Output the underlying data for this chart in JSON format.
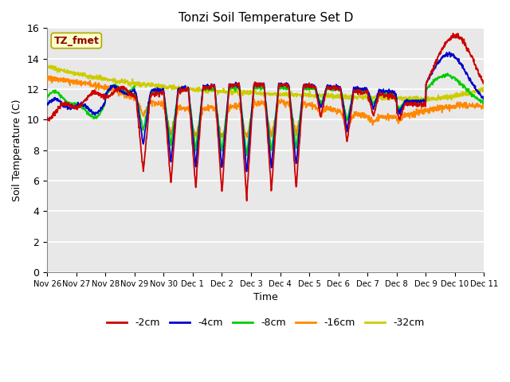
{
  "title": "Tonzi Soil Temperature Set D",
  "xlabel": "Time",
  "ylabel": "Soil Temperature (C)",
  "ylim": [
    0,
    16
  ],
  "yticks": [
    0,
    2,
    4,
    6,
    8,
    10,
    12,
    14,
    16
  ],
  "annotation_text": "TZ_fmet",
  "annotation_color": "#8B0000",
  "annotation_bg": "#FFFFCC",
  "annotation_edge": "#AAAA00",
  "series_colors": [
    "#CC0000",
    "#0000CC",
    "#00CC00",
    "#FF8800",
    "#CCCC00"
  ],
  "series_labels": [
    "-2cm",
    "-4cm",
    "-8cm",
    "-16cm",
    "-32cm"
  ],
  "bg_color": "#E8E8E8",
  "day_labels": [
    "Nov 26",
    "Nov 27",
    "Nov 28",
    "Nov 29",
    "Nov 30",
    "Dec 1",
    "Dec 2",
    "Dec 3",
    "Dec 4",
    "Dec 5",
    "Dec 6",
    "Dec 7",
    "Dec 8",
    "Dec 9",
    "Dec 10",
    "Dec 11"
  ]
}
